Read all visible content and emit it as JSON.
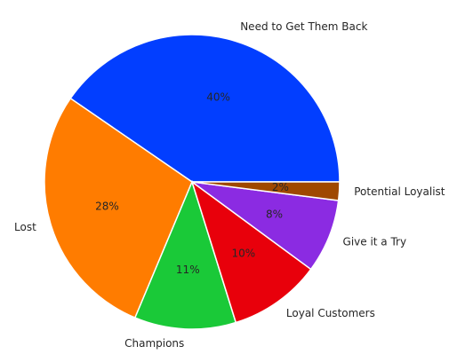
{
  "chart_data": {
    "type": "pie",
    "categories": [
      "Need to Get Them Back",
      "Lost",
      "Champions",
      "Loyal Customers",
      "Give it a Try",
      "Potential Loyalist"
    ],
    "values": [
      40,
      28,
      11,
      10,
      8,
      2
    ],
    "value_labels": [
      "40%",
      "28%",
      "11%",
      "10%",
      "8%",
      "2%"
    ],
    "colors": [
      "#023eff",
      "#ff7c00",
      "#1ac938",
      "#e8000b",
      "#8b2be2",
      "#9f4800"
    ]
  }
}
